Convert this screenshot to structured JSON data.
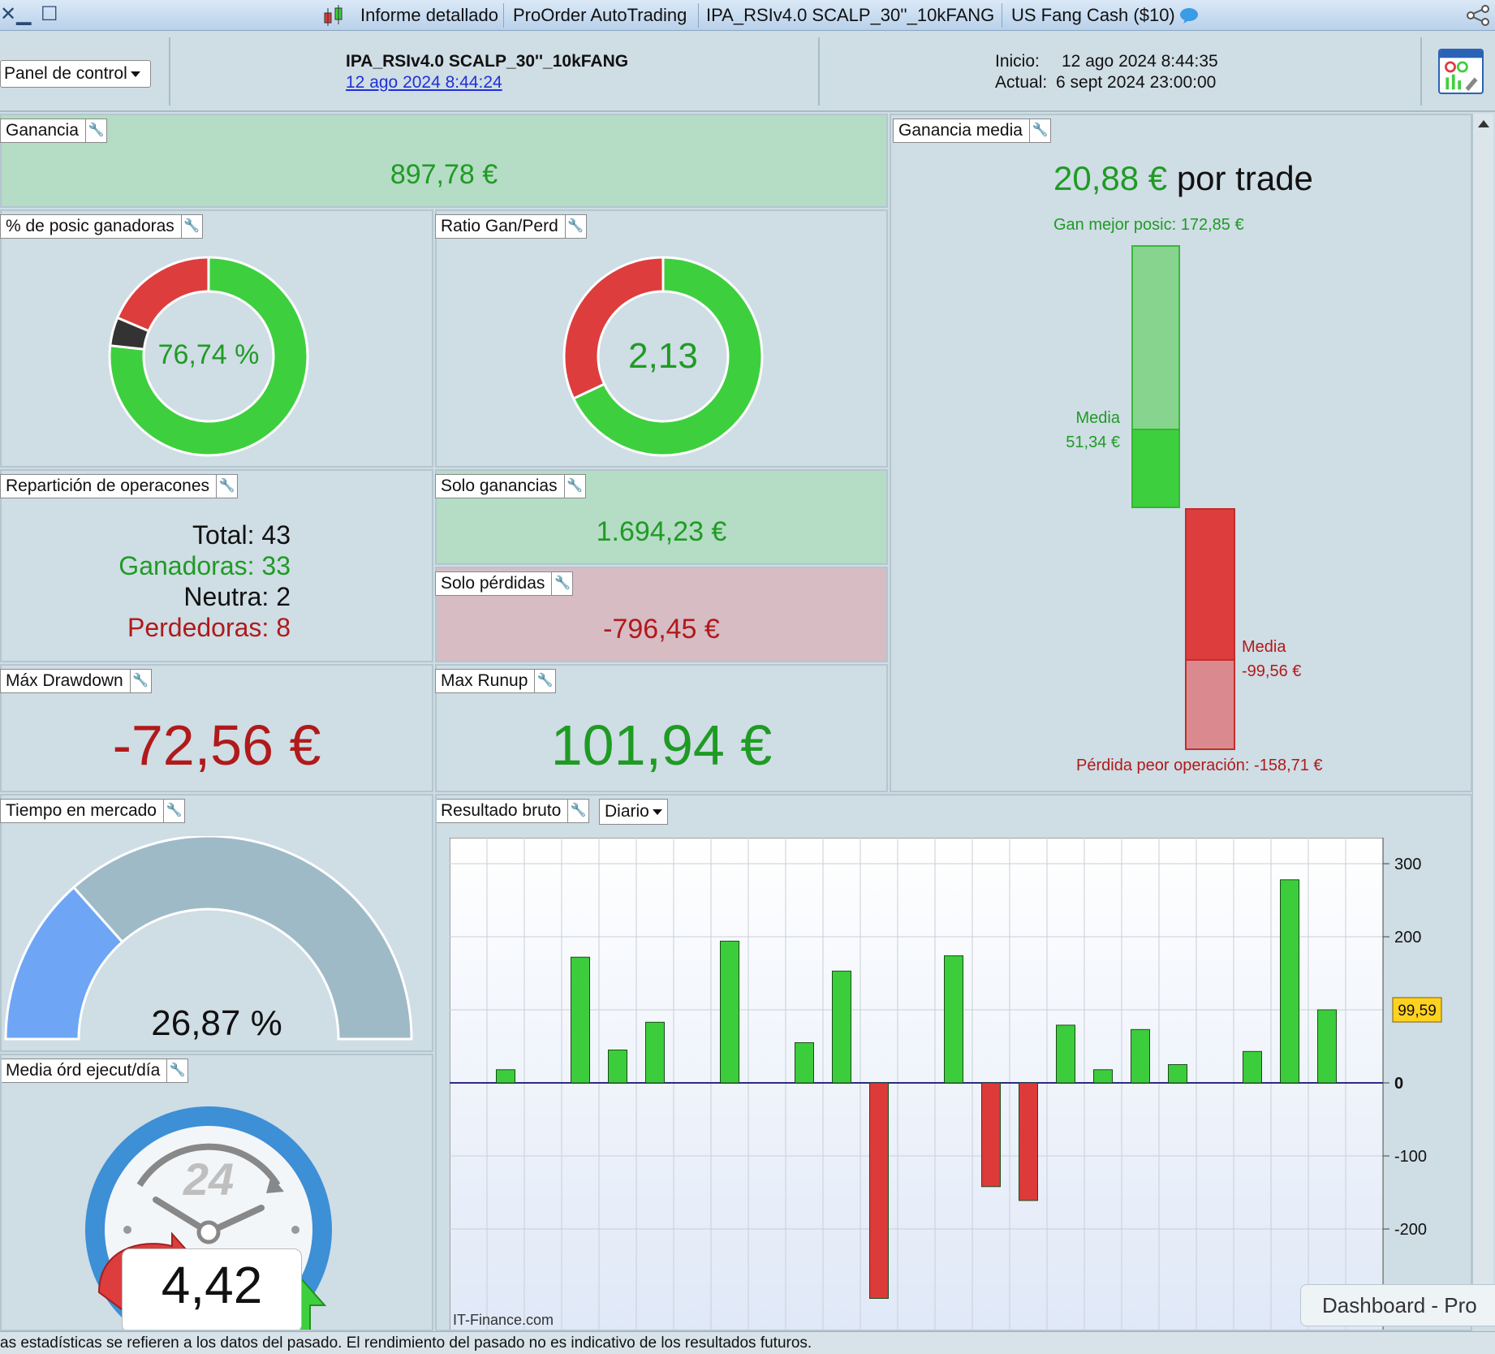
{
  "titlebar": {
    "tabs": [
      "Informe detallado",
      "ProOrder AutoTrading",
      "IPA_RSIv4.0 SCALP_30''_10kFANG",
      "US Fang Cash ($10)"
    ]
  },
  "header": {
    "panel_dropdown": "Panel de control",
    "strategy_name": "IPA_RSIv4.0 SCALP_30''_10kFANG",
    "strategy_date": "12 ago 2024 8:44:24",
    "inicio_label": "Inicio:",
    "inicio_value": "12 ago 2024 8:44:35",
    "actual_label": "Actual:",
    "actual_value": "6 sept 2024 23:00:00"
  },
  "ganancia": {
    "label": "Ganancia",
    "value": "897,78 €"
  },
  "posic_ganadoras": {
    "label": "% de posic ganadoras",
    "value": "76,74 %",
    "fraction_win": 0.7674,
    "fraction_neutral": 0.0465,
    "fraction_loss": 0.186
  },
  "ratio": {
    "label": "Ratio Gan/Perd",
    "value": "2,13",
    "fraction_green": 0.68
  },
  "reparticion": {
    "label": "Repartición de operacones",
    "total": "Total: 43",
    "ganadoras": "Ganadoras: 33",
    "neutra": "Neutra: 2",
    "perdedoras": "Perdedoras: 8"
  },
  "solo_ganancias": {
    "label": "Solo ganancias",
    "value": "1.694,23 €"
  },
  "solo_perdidas": {
    "label": "Solo pérdidas",
    "value": "-796,45 €"
  },
  "drawdown": {
    "label": "Máx Drawdown",
    "value": "-72,56 €"
  },
  "runup": {
    "label": "Max Runup",
    "value": "101,94 €"
  },
  "ganancia_media": {
    "label": "Ganancia media",
    "value": "20,88 €",
    "suffix": "por trade",
    "best": "Gan mejor posic: 172,85 €",
    "media_pos_label": "Media",
    "media_pos_value": "51,34 €",
    "media_neg_label": "Media",
    "media_neg_value": "-99,56 €",
    "worst": "Pérdida peor operación: -158,71 €"
  },
  "tiempo": {
    "label": "Tiempo en mercado",
    "value": "26,87 %",
    "fraction": 0.2687
  },
  "media_ord": {
    "label": "Media órd ejecut/día",
    "value": "4,42",
    "dial_text": "24"
  },
  "resultado": {
    "label": "Resultado bruto",
    "period": "Diario",
    "watermark": "IT-Finance.com",
    "marker": "99,59"
  },
  "chart_data": {
    "type": "bar",
    "title": "Resultado bruto",
    "x": [
      1,
      2,
      3,
      4,
      5,
      6,
      7,
      8,
      9,
      10,
      11,
      12,
      13,
      14,
      15,
      16,
      17,
      18,
      19,
      20,
      21,
      22,
      23,
      24,
      25
    ],
    "values": [
      0,
      18,
      0,
      172,
      45,
      83,
      0,
      194,
      0,
      55,
      153,
      -295,
      0,
      174,
      -142,
      -161,
      79,
      18,
      73,
      25,
      0,
      43,
      278,
      100,
      0
    ],
    "ylim": [
      -300,
      300
    ],
    "yticks": [
      "300",
      "200",
      "0",
      "-100",
      "-200"
    ],
    "colors": {
      "positive": "#3ccd3c",
      "negative": "#dd3a3a"
    }
  },
  "footer": {
    "text": "as estadísticas se refieren a los datos del pasado. El rendimiento del pasado no es indicativo de los resultados futuros."
  },
  "dashboard_tab": "Dashboard - Pro",
  "colors": {
    "green": "#1f9b24",
    "red": "#b01a1a",
    "ring_green": "#3ecf3e",
    "ring_red": "#de3d3d"
  }
}
